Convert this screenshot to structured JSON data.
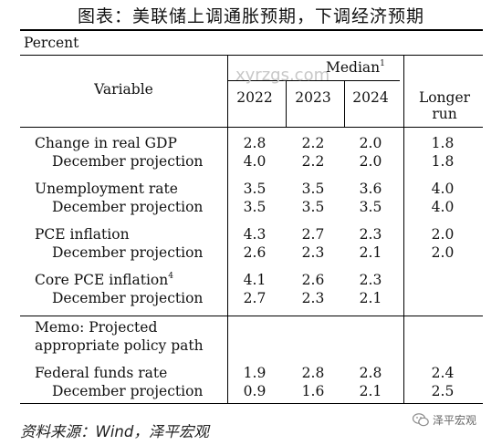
{
  "title": "图表：美联储上调通胀预期，下调经济预期",
  "unit": "Percent",
  "header": {
    "variable": "Variable",
    "median": "Median",
    "median_note": "1",
    "years": [
      "2022",
      "2023",
      "2024"
    ],
    "longer_line1": "Longer",
    "longer_line2": "run"
  },
  "rows": [
    {
      "label": "Change in real GDP",
      "note": "",
      "values": [
        "2.8",
        "2.2",
        "2.0",
        "1.8"
      ]
    },
    {
      "label": "December projection",
      "note": "",
      "values": [
        "4.0",
        "2.2",
        "2.0",
        "1.8"
      ]
    },
    {
      "label": "Unemployment rate",
      "note": "",
      "values": [
        "3.5",
        "3.5",
        "3.6",
        "4.0"
      ]
    },
    {
      "label": "December projection",
      "note": "",
      "values": [
        "3.5",
        "3.5",
        "3.5",
        "4.0"
      ]
    },
    {
      "label": "PCE inflation",
      "note": "",
      "values": [
        "4.3",
        "2.7",
        "2.3",
        "2.0"
      ]
    },
    {
      "label": "December projection",
      "note": "",
      "values": [
        "2.6",
        "2.3",
        "2.1",
        "2.0"
      ]
    },
    {
      "label": "Core PCE inflation",
      "note": "4",
      "values": [
        "4.1",
        "2.6",
        "2.3",
        ""
      ]
    },
    {
      "label": "December projection",
      "note": "",
      "values": [
        "2.7",
        "2.3",
        "2.1",
        ""
      ]
    }
  ],
  "memo_line1": "Memo: Projected",
  "memo_line2": "appropriate policy path",
  "fed_rows": [
    {
      "label": "Federal funds rate",
      "note": "",
      "values": [
        "1.9",
        "2.8",
        "2.8",
        "2.4"
      ]
    },
    {
      "label": "December projection",
      "note": "",
      "values": [
        "0.9",
        "1.6",
        "2.1",
        "2.5"
      ]
    }
  ],
  "watermark": "xyrzgs.com",
  "source": "资料来源：Wind，泽平宏观",
  "brand": "泽平宏观"
}
